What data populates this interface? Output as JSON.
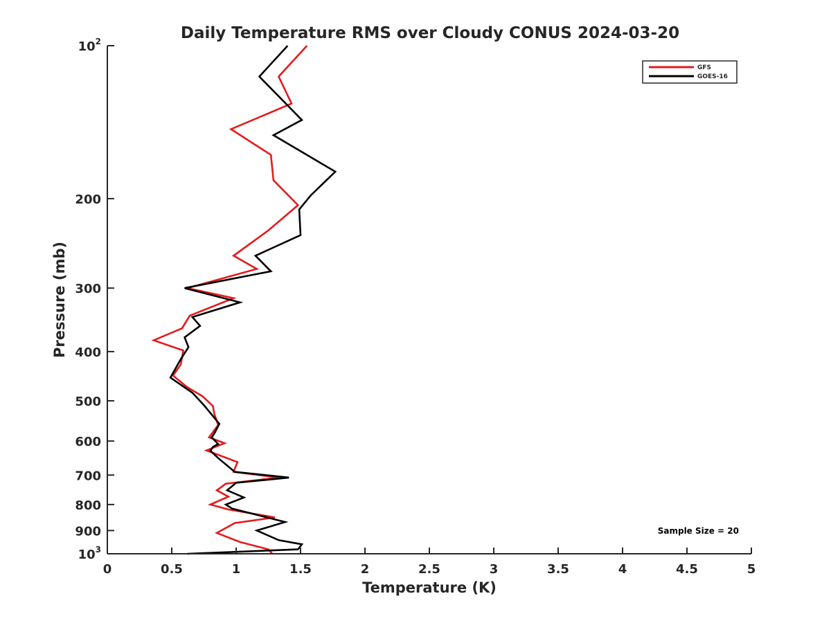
{
  "chart_data": {
    "type": "line",
    "title": "Daily Temperature RMS over Cloudy CONUS 2024-03-20",
    "xlabel": "Temperature (K)",
    "ylabel": "Pressure (mb)",
    "xlim": [
      0,
      5
    ],
    "ylim": [
      1000,
      100
    ],
    "y_scale": "log",
    "y_reversed": true,
    "grid": false,
    "legend_position": "top-right",
    "x_ticks": [
      "0",
      "0.5",
      "1",
      "1.5",
      "2",
      "2.5",
      "3",
      "3.5",
      "4",
      "4.5",
      "5"
    ],
    "y_ticks": [
      {
        "value": 100,
        "base": "10",
        "exp": "2"
      },
      {
        "value": 200,
        "label": "200"
      },
      {
        "value": 300,
        "label": "300"
      },
      {
        "value": 400,
        "label": "400"
      },
      {
        "value": 500,
        "label": "500"
      },
      {
        "value": 600,
        "label": "600"
      },
      {
        "value": 700,
        "label": "700"
      },
      {
        "value": 800,
        "label": "800"
      },
      {
        "value": 900,
        "label": "900"
      },
      {
        "value": 1000,
        "base": "10",
        "exp": "3"
      }
    ],
    "series": [
      {
        "name": "GFS",
        "color": "#e41a1c",
        "points": [
          [
            1.55,
            100
          ],
          [
            1.33,
            115
          ],
          [
            1.43,
            130
          ],
          [
            0.96,
            146
          ],
          [
            1.27,
            164
          ],
          [
            1.29,
            184
          ],
          [
            1.48,
            206
          ],
          [
            1.25,
            231
          ],
          [
            0.98,
            259
          ],
          [
            1.16,
            275
          ],
          [
            0.62,
            300
          ],
          [
            0.98,
            314
          ],
          [
            0.64,
            340
          ],
          [
            0.58,
            360
          ],
          [
            0.36,
            380
          ],
          [
            0.59,
            398
          ],
          [
            0.57,
            424
          ],
          [
            0.51,
            446
          ],
          [
            0.62,
            470
          ],
          [
            0.74,
            490
          ],
          [
            0.82,
            512
          ],
          [
            0.83,
            530
          ],
          [
            0.86,
            558
          ],
          [
            0.79,
            590
          ],
          [
            0.91,
            606
          ],
          [
            0.77,
            626
          ],
          [
            1.01,
            660
          ],
          [
            0.98,
            690
          ],
          [
            1.33,
            708
          ],
          [
            0.92,
            728
          ],
          [
            0.85,
            750
          ],
          [
            0.94,
            772
          ],
          [
            0.8,
            800
          ],
          [
            0.94,
            818
          ],
          [
            1.3,
            848
          ],
          [
            0.99,
            870
          ],
          [
            0.85,
            910
          ],
          [
            1.03,
            948
          ],
          [
            1.25,
            980
          ],
          [
            1.28,
            1000
          ]
        ]
      },
      {
        "name": "GOES-16",
        "color": "#000000",
        "points": [
          [
            1.4,
            100
          ],
          [
            1.18,
            115
          ],
          [
            1.51,
            140
          ],
          [
            1.29,
            150
          ],
          [
            1.77,
            177
          ],
          [
            1.58,
            197
          ],
          [
            1.49,
            210
          ],
          [
            1.5,
            236
          ],
          [
            1.15,
            259
          ],
          [
            1.27,
            278
          ],
          [
            0.6,
            300
          ],
          [
            1.03,
            320
          ],
          [
            0.66,
            342
          ],
          [
            0.72,
            356
          ],
          [
            0.6,
            375
          ],
          [
            0.63,
            392
          ],
          [
            0.57,
            414
          ],
          [
            0.49,
            450
          ],
          [
            0.66,
            482
          ],
          [
            0.75,
            510
          ],
          [
            0.87,
            555
          ],
          [
            0.83,
            580
          ],
          [
            0.81,
            590
          ],
          [
            0.86,
            608
          ],
          [
            0.82,
            616
          ],
          [
            0.8,
            627
          ],
          [
            0.86,
            648
          ],
          [
            0.99,
            690
          ],
          [
            1.41,
            708
          ],
          [
            1.0,
            725
          ],
          [
            0.93,
            750
          ],
          [
            1.06,
            775
          ],
          [
            0.92,
            800
          ],
          [
            0.97,
            815
          ],
          [
            1.38,
            866
          ],
          [
            1.16,
            900
          ],
          [
            1.33,
            940
          ],
          [
            1.51,
            958
          ],
          [
            1.48,
            980
          ],
          [
            0.62,
            1000
          ]
        ]
      }
    ],
    "annotations": [
      "Sample Size = 20"
    ]
  }
}
